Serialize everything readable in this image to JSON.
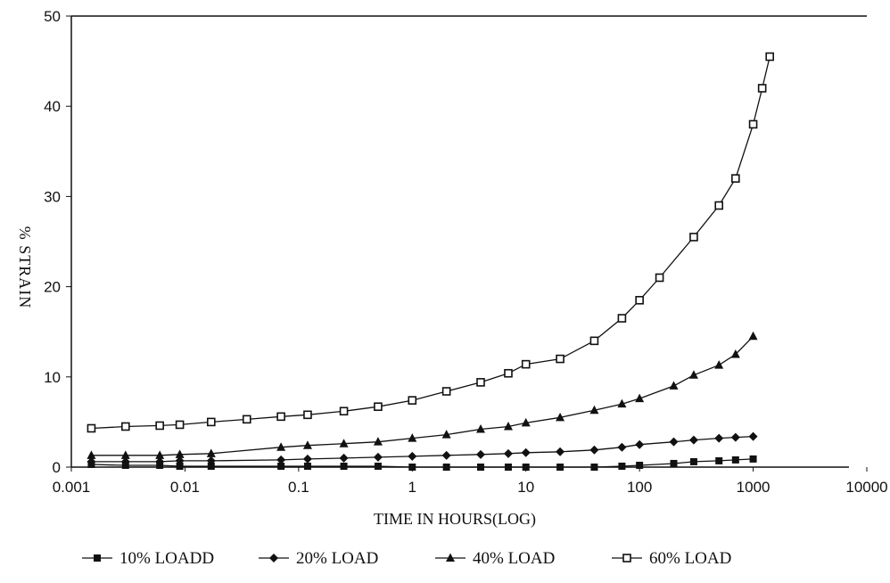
{
  "chart_data": {
    "type": "line",
    "title": "",
    "xlabel": "TIME IN HOURS(LOG)",
    "ylabel": "% STRAIN",
    "x_scale": "log",
    "xlim": [
      0.001,
      10000
    ],
    "ylim": [
      0,
      50
    ],
    "x_ticks": [
      "0.001",
      "0.01",
      "0.1",
      "1",
      "10",
      "100",
      "1000",
      "10000"
    ],
    "y_ticks": [
      "0",
      "10",
      "20",
      "30",
      "40",
      "50"
    ],
    "legend_position": "bottom",
    "grid": false,
    "series": [
      {
        "name": "10% LOADD",
        "marker": "filled-square",
        "color": "#111111",
        "points": [
          [
            0.0015,
            0.3
          ],
          [
            0.003,
            0.2
          ],
          [
            0.006,
            0.2
          ],
          [
            0.009,
            0.1
          ],
          [
            0.017,
            0.1
          ],
          [
            0.07,
            0.1
          ],
          [
            0.12,
            0.1
          ],
          [
            0.25,
            0.1
          ],
          [
            0.5,
            0.1
          ],
          [
            1,
            0
          ],
          [
            2,
            0
          ],
          [
            4,
            0
          ],
          [
            7,
            0
          ],
          [
            10,
            0
          ],
          [
            20,
            0
          ],
          [
            40,
            0
          ],
          [
            70,
            0.1
          ],
          [
            100,
            0.2
          ],
          [
            200,
            0.4
          ],
          [
            300,
            0.6
          ],
          [
            500,
            0.7
          ],
          [
            700,
            0.8
          ],
          [
            1000,
            0.9
          ]
        ]
      },
      {
        "name": "20% LOAD",
        "marker": "filled-diamond",
        "color": "#111111",
        "points": [
          [
            0.0015,
            0.6
          ],
          [
            0.003,
            0.6
          ],
          [
            0.006,
            0.6
          ],
          [
            0.009,
            0.7
          ],
          [
            0.017,
            0.7
          ],
          [
            0.07,
            0.8
          ],
          [
            0.12,
            0.9
          ],
          [
            0.25,
            1.0
          ],
          [
            0.5,
            1.1
          ],
          [
            1,
            1.2
          ],
          [
            2,
            1.3
          ],
          [
            4,
            1.4
          ],
          [
            7,
            1.5
          ],
          [
            10,
            1.6
          ],
          [
            20,
            1.7
          ],
          [
            40,
            1.9
          ],
          [
            70,
            2.2
          ],
          [
            100,
            2.5
          ],
          [
            200,
            2.8
          ],
          [
            300,
            3.0
          ],
          [
            500,
            3.2
          ],
          [
            700,
            3.3
          ],
          [
            1000,
            3.4
          ]
        ]
      },
      {
        "name": "40% LOAD",
        "marker": "filled-triangle",
        "color": "#111111",
        "points": [
          [
            0.0015,
            1.3
          ],
          [
            0.003,
            1.3
          ],
          [
            0.006,
            1.3
          ],
          [
            0.009,
            1.4
          ],
          [
            0.017,
            1.5
          ],
          [
            0.07,
            2.2
          ],
          [
            0.12,
            2.4
          ],
          [
            0.25,
            2.6
          ],
          [
            0.5,
            2.8
          ],
          [
            1,
            3.2
          ],
          [
            2,
            3.6
          ],
          [
            4,
            4.2
          ],
          [
            7,
            4.5
          ],
          [
            10,
            4.9
          ],
          [
            20,
            5.5
          ],
          [
            40,
            6.3
          ],
          [
            70,
            7.0
          ],
          [
            100,
            7.6
          ],
          [
            200,
            9.0
          ],
          [
            300,
            10.2
          ],
          [
            500,
            11.3
          ],
          [
            700,
            12.5
          ],
          [
            1000,
            14.5
          ]
        ]
      },
      {
        "name": "60% LOAD",
        "marker": "open-square",
        "color": "#111111",
        "points": [
          [
            0.0015,
            4.3
          ],
          [
            0.003,
            4.5
          ],
          [
            0.006,
            4.6
          ],
          [
            0.009,
            4.7
          ],
          [
            0.017,
            5.0
          ],
          [
            0.035,
            5.3
          ],
          [
            0.07,
            5.6
          ],
          [
            0.12,
            5.8
          ],
          [
            0.25,
            6.2
          ],
          [
            0.5,
            6.7
          ],
          [
            1,
            7.4
          ],
          [
            2,
            8.4
          ],
          [
            4,
            9.4
          ],
          [
            7,
            10.4
          ],
          [
            10,
            11.4
          ],
          [
            20,
            12.0
          ],
          [
            40,
            14.0
          ],
          [
            70,
            16.5
          ],
          [
            100,
            18.5
          ],
          [
            150,
            21.0
          ],
          [
            300,
            25.5
          ],
          [
            500,
            29.0
          ],
          [
            700,
            32.0
          ],
          [
            1000,
            38.0
          ],
          [
            1200,
            42.0
          ],
          [
            1400,
            45.5
          ]
        ]
      }
    ]
  }
}
